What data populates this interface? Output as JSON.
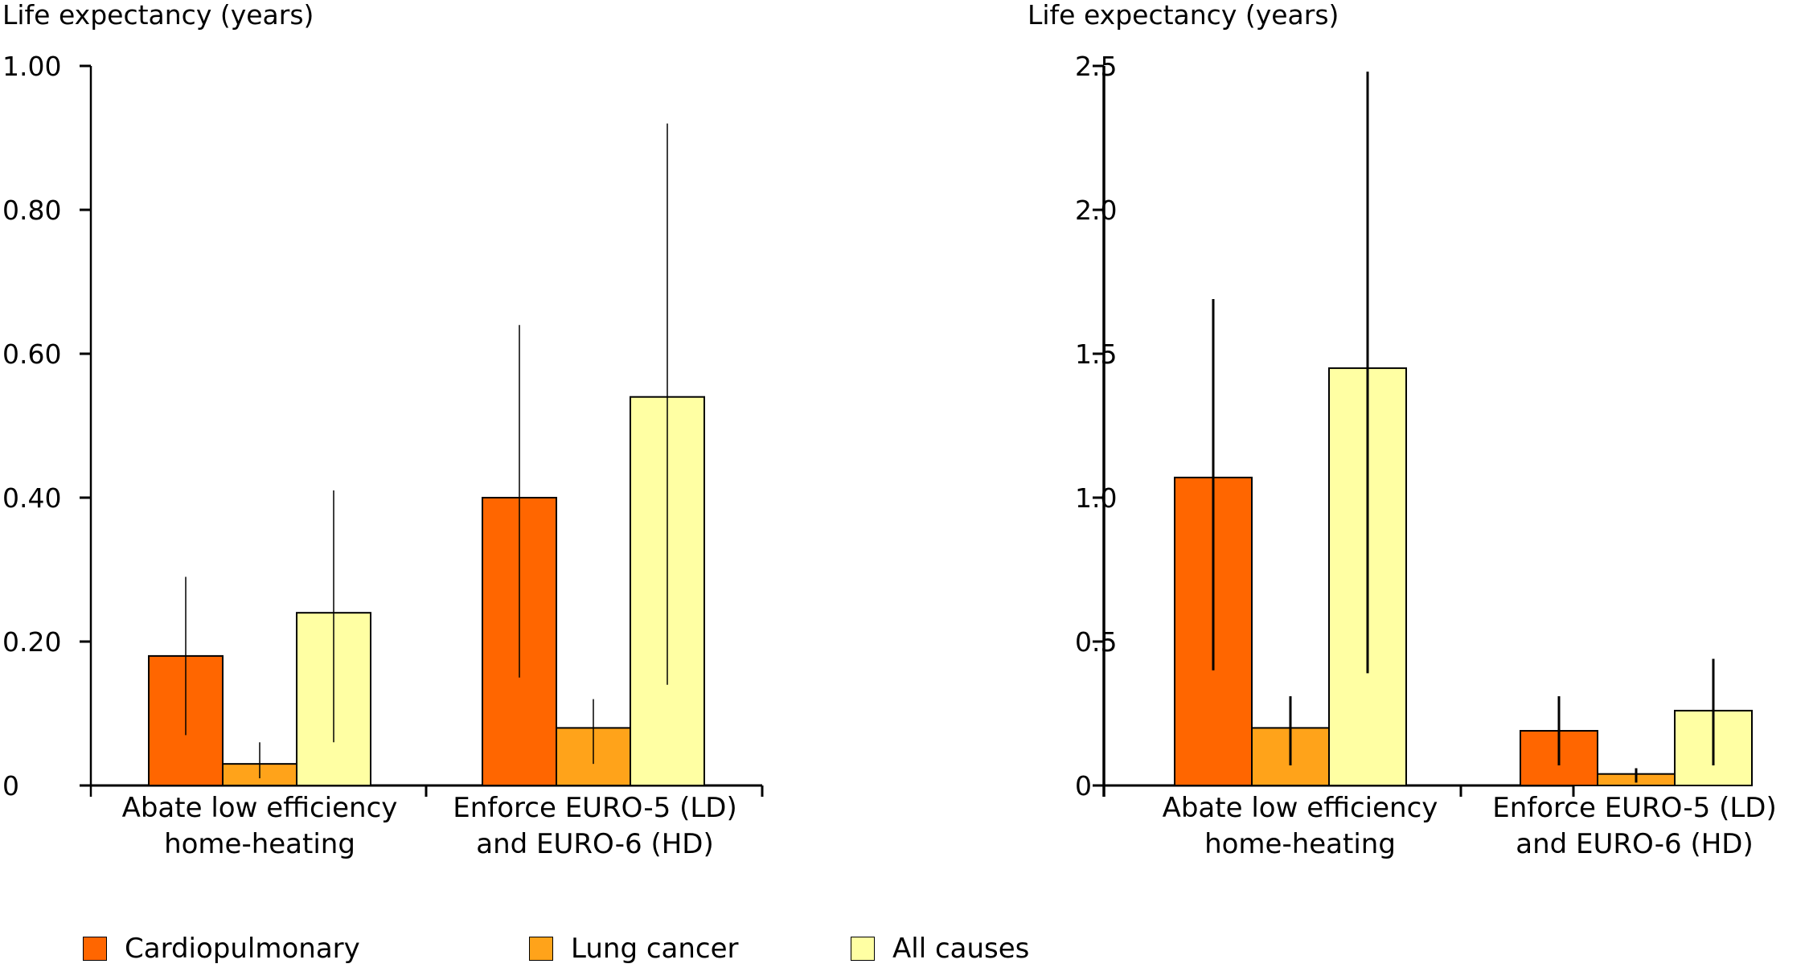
{
  "chart_data": [
    {
      "type": "bar",
      "ylabel": "Life expectancy (years)",
      "ylim": [
        0,
        1.0
      ],
      "yticks": [
        "0",
        "0.20",
        "0.40",
        "0.60",
        "0.80",
        "1.00"
      ],
      "ytick_values": [
        0,
        0.2,
        0.4,
        0.6,
        0.8,
        1.0
      ],
      "categories": [
        [
          "Abate low efficiency",
          "home-heating"
        ],
        [
          "Enforce EURO-5 (LD)",
          "and EURO-6 (HD)"
        ]
      ],
      "series": [
        {
          "name": "Cardiopulmonary",
          "values": [
            0.18,
            0.4
          ],
          "err_low": [
            0.07,
            0.15
          ],
          "err_high": [
            0.29,
            0.64
          ]
        },
        {
          "name": "Lung cancer",
          "values": [
            0.03,
            0.08
          ],
          "err_low": [
            0.01,
            0.03
          ],
          "err_high": [
            0.06,
            0.12
          ]
        },
        {
          "name": "All causes",
          "values": [
            0.24,
            0.54
          ],
          "err_low": [
            0.06,
            0.14
          ],
          "err_high": [
            0.41,
            0.92
          ]
        }
      ],
      "grid": false
    },
    {
      "type": "bar",
      "ylabel": "Life expectancy (years)",
      "ylim": [
        0,
        2.5
      ],
      "yticks": [
        "0",
        "0.5",
        "1.0",
        "1.5",
        "2.0",
        "2.5"
      ],
      "ytick_values": [
        0,
        0.5,
        1.0,
        1.5,
        2.0,
        2.5
      ],
      "categories": [
        [
          "Abate low efficiency",
          "home-heating"
        ],
        [
          "Enforce EURO-5 (LD)",
          "and EURO-6 (HD)"
        ]
      ],
      "series": [
        {
          "name": "Cardiopulmonary",
          "values": [
            1.07,
            0.19
          ],
          "err_low": [
            0.4,
            0.07
          ],
          "err_high": [
            1.69,
            0.31
          ]
        },
        {
          "name": "Lung cancer",
          "values": [
            0.2,
            0.04
          ],
          "err_low": [
            0.07,
            0.01
          ],
          "err_high": [
            0.31,
            0.06
          ]
        },
        {
          "name": "All causes",
          "values": [
            1.45,
            0.26
          ],
          "err_low": [
            0.39,
            0.07
          ],
          "err_high": [
            2.48,
            0.44
          ]
        }
      ],
      "grid": false
    }
  ],
  "legend": {
    "placement": "bottom",
    "items": [
      {
        "label": "Cardiopulmonary",
        "color": "#FF6600"
      },
      {
        "label": "Lung cancer",
        "color": "#FFA31A"
      },
      {
        "label": "All causes",
        "color": "#FFFFA3"
      }
    ]
  }
}
